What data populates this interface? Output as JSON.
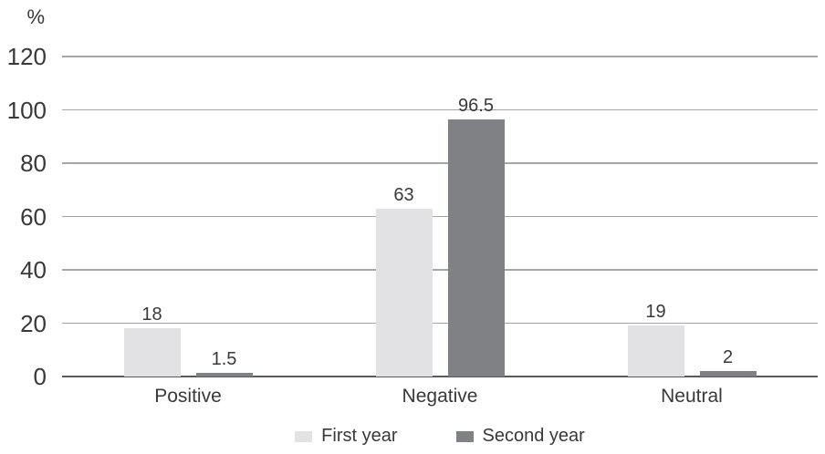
{
  "chart_data": {
    "type": "bar",
    "title": "",
    "ylabel": "%",
    "xlabel": "",
    "categories": [
      "Positive",
      "Negative",
      "Neutral"
    ],
    "series": [
      {
        "name": "First year",
        "values": [
          18,
          63,
          19
        ],
        "color": "#e2e2e4"
      },
      {
        "name": "Second year",
        "values": [
          1.5,
          96.5,
          2
        ],
        "color": "#808184"
      }
    ],
    "ylim": [
      0,
      120
    ],
    "yticks": [
      0,
      20,
      40,
      60,
      80,
      100,
      120
    ],
    "grid": true,
    "value_labels": true,
    "legend_position": "bottom"
  },
  "colors": {
    "grid_line": "#a5a6a9",
    "axis_line": "#58595c",
    "text": "#39393b",
    "background": "#ffffff"
  }
}
